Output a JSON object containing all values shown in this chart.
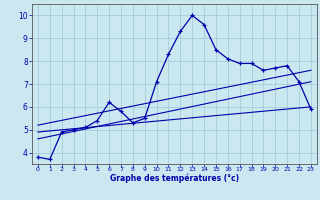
{
  "xlabel": "Graphe des températures (°c)",
  "background_color": "#cbe8f0",
  "grid_color": "#9ec8d8",
  "line_color": "#0000aa",
  "xlim": [
    -0.5,
    23.5
  ],
  "ylim": [
    3.5,
    10.5
  ],
  "yticks": [
    4,
    5,
    6,
    7,
    8,
    9,
    10
  ],
  "xticks": [
    0,
    1,
    2,
    3,
    4,
    5,
    6,
    7,
    8,
    9,
    10,
    11,
    12,
    13,
    14,
    15,
    16,
    17,
    18,
    19,
    20,
    21,
    22,
    23
  ],
  "line1_x": [
    0,
    1,
    2,
    3,
    4,
    5,
    6,
    7,
    8,
    9,
    10,
    11,
    12,
    13,
    14,
    15,
    16,
    17,
    18,
    19,
    20,
    21,
    22,
    23
  ],
  "line1_y": [
    3.8,
    3.7,
    4.9,
    5.0,
    5.1,
    5.4,
    6.2,
    5.8,
    5.3,
    5.5,
    7.1,
    8.3,
    9.3,
    10.0,
    9.6,
    8.5,
    8.1,
    7.9,
    7.9,
    7.6,
    7.7,
    7.8,
    7.1,
    5.9
  ],
  "line3_x": [
    0,
    23
  ],
  "line3_y": [
    4.9,
    6.0
  ],
  "line4_x": [
    0,
    23
  ],
  "line4_y": [
    5.2,
    7.6
  ],
  "line5_x": [
    0,
    23
  ],
  "line5_y": [
    4.6,
    7.1
  ]
}
